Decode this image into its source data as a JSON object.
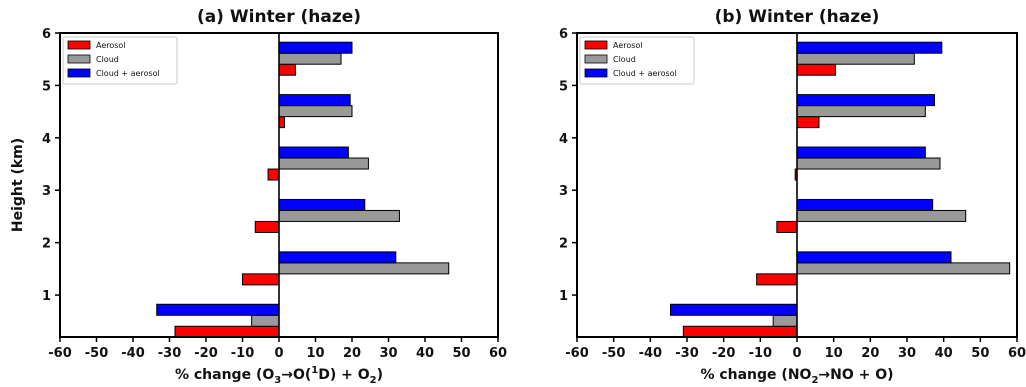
{
  "chart_data": [
    {
      "type": "bar",
      "orientation": "horizontal",
      "title": "(a)  Winter (haze)",
      "xlabel": "% change",
      "xlabel_equation": {
        "prefix": "(O",
        "sub1": "3",
        "arrow": "→",
        "mid": "O(",
        "sup": "1",
        "after": "D) + O",
        "sub2": "2",
        "suffix": ")"
      },
      "ylabel": "Height (km)",
      "xlim": [
        -60,
        60
      ],
      "ylim": [
        0.2,
        6.0
      ],
      "xticks": [
        -60,
        -50,
        -40,
        -30,
        -20,
        -10,
        0,
        10,
        20,
        30,
        40,
        50,
        60
      ],
      "yticks": [
        1,
        2,
        3,
        4,
        5,
        6
      ],
      "legend_position": "top-left",
      "heights": [
        0.5,
        1.5,
        2.5,
        3.5,
        4.5,
        5.5
      ],
      "series": [
        {
          "name": "Aerosol",
          "color": "#ff0000",
          "values": [
            -28.5,
            -10,
            -6.5,
            -3,
            1.5,
            4.5
          ]
        },
        {
          "name": "Cloud",
          "color": "#999999",
          "values": [
            -7.5,
            46.5,
            33,
            24.5,
            20,
            17
          ]
        },
        {
          "name": "Cloud + aerosol",
          "color": "#0000ff",
          "values": [
            -33.5,
            32,
            23.5,
            19,
            19.5,
            20
          ]
        }
      ]
    },
    {
      "type": "bar",
      "orientation": "horizontal",
      "title": "(b) Winter (haze)",
      "xlabel": "% change",
      "xlabel_equation": {
        "prefix": "(NO",
        "sub1": "2",
        "arrow": "→",
        "mid": "NO + O)",
        "sup": "",
        "after": "",
        "sub2": "",
        "suffix": ""
      },
      "ylabel": "",
      "xlim": [
        -60,
        60
      ],
      "ylim": [
        0.2,
        6.0
      ],
      "xticks": [
        -60,
        -50,
        -40,
        -30,
        -20,
        -10,
        0,
        10,
        20,
        30,
        40,
        50,
        60
      ],
      "yticks": [
        1,
        2,
        3,
        4,
        5,
        6
      ],
      "legend_position": "top-left",
      "heights": [
        0.5,
        1.5,
        2.5,
        3.5,
        4.5,
        5.5
      ],
      "series": [
        {
          "name": "Aerosol",
          "color": "#ff0000",
          "values": [
            -31,
            -11,
            -5.5,
            -0.5,
            6,
            10.5
          ]
        },
        {
          "name": "Cloud",
          "color": "#999999",
          "values": [
            -6.5,
            58,
            46,
            39,
            35,
            32
          ]
        },
        {
          "name": "Cloud + aerosol",
          "color": "#0000ff",
          "values": [
            -34.5,
            42,
            37,
            35,
            37.5,
            39.5
          ]
        }
      ]
    }
  ]
}
